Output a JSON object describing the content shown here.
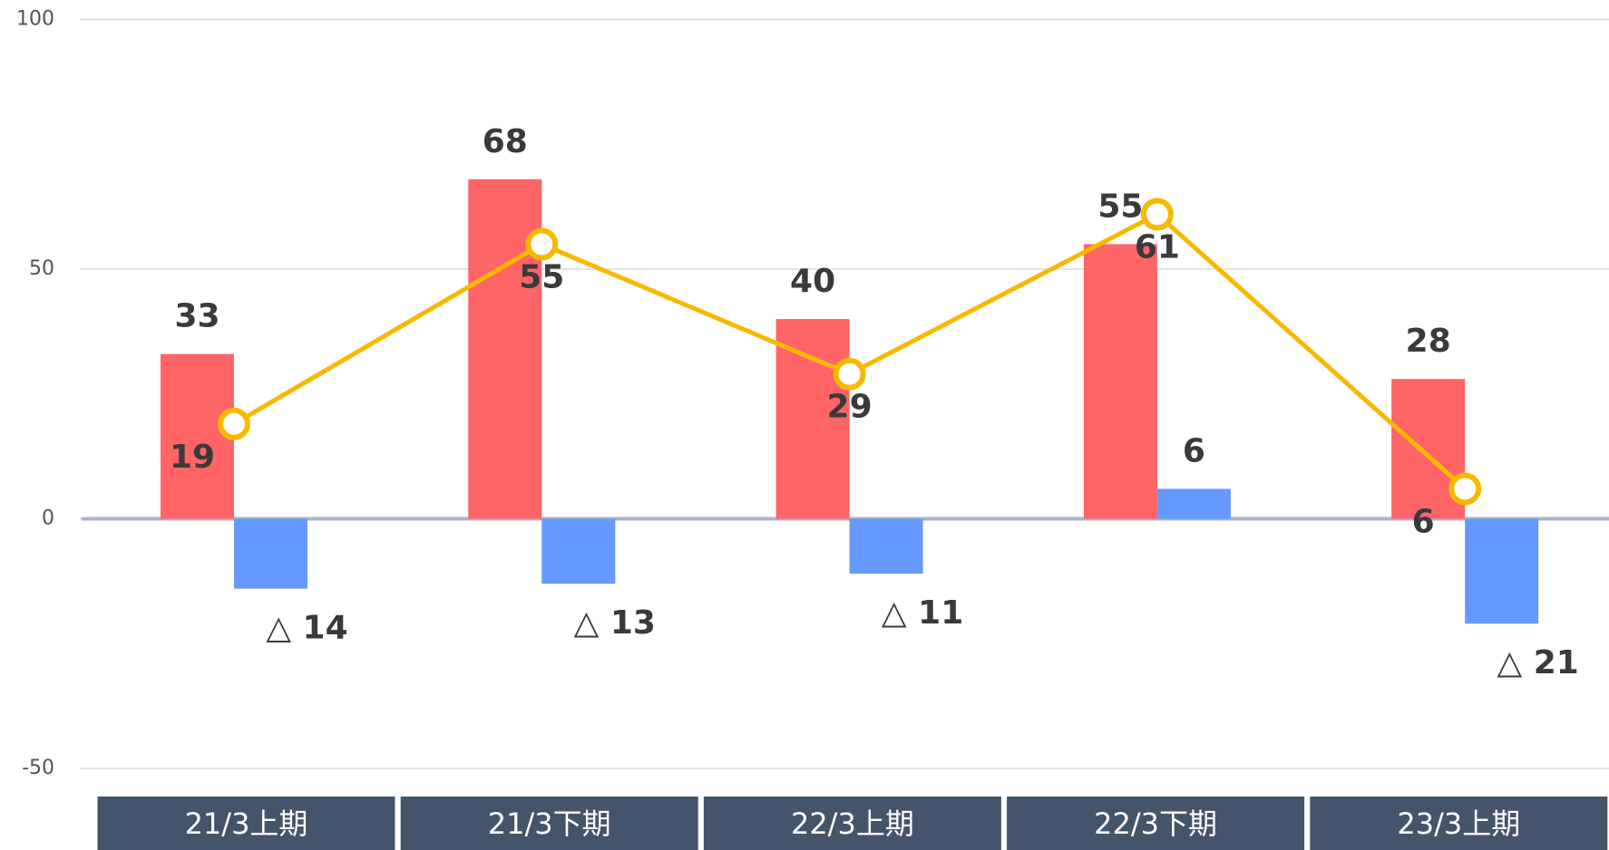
{
  "chart_data": {
    "type": "bar-line",
    "categories": [
      "21/3上期",
      "21/3下期",
      "22/3上期",
      "22/3下期",
      "23/3上期"
    ],
    "series": [
      {
        "type": "bar",
        "color": "#ff6467",
        "values": [
          33,
          68,
          40,
          55,
          28
        ]
      },
      {
        "type": "bar",
        "color": "#6699ff",
        "values": [
          -14,
          -13,
          -11,
          6,
          -21
        ],
        "value_labels": [
          "△ 14",
          "△ 13",
          "△ 11",
          "6",
          "△ 21"
        ]
      },
      {
        "type": "line",
        "color": "#f7b900",
        "values": [
          19,
          55,
          29,
          61,
          6
        ]
      }
    ],
    "ylim": [
      -50,
      100
    ],
    "yticks": [
      -50,
      0,
      50,
      100
    ],
    "grid": true
  }
}
